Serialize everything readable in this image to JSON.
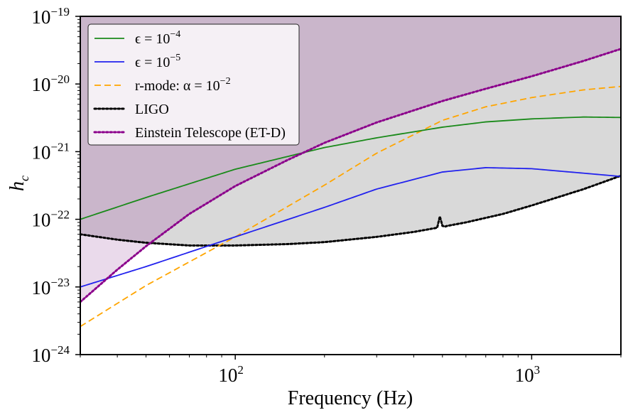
{
  "chart_data": {
    "type": "line",
    "xscale": "log",
    "yscale": "log",
    "xlim": [
      30,
      2000
    ],
    "ylim": [
      1e-24,
      1e-19
    ],
    "xlabel": "Frequency (Hz)",
    "ylabel": "h",
    "ylabel_sub": "c",
    "x_ticks": [
      {
        "base": "10",
        "exp": "2",
        "value": 100
      },
      {
        "base": "10",
        "exp": "3",
        "value": 1000
      }
    ],
    "y_ticks": [
      {
        "base": "10",
        "exp": "−24",
        "value": 1e-24
      },
      {
        "base": "10",
        "exp": "−23",
        "value": 1e-23
      },
      {
        "base": "10",
        "exp": "−22",
        "value": 1e-22
      },
      {
        "base": "10",
        "exp": "−21",
        "value": 1e-21
      },
      {
        "base": "10",
        "exp": "−20",
        "value": 1e-20
      },
      {
        "base": "10",
        "exp": "−19",
        "value": 1e-19
      }
    ],
    "legend_position": "top-left",
    "series": [
      {
        "key": "eps4",
        "name": "ϵ = 10",
        "name_exp": "−4",
        "color": "#1a8a1a",
        "style": "solid",
        "x": [
          30,
          50,
          100,
          200,
          300,
          500,
          700,
          1000,
          1500,
          2000
        ],
        "y": [
          1e-22,
          2.1e-22,
          5.5e-22,
          1.15e-21,
          1.6e-21,
          2.3e-21,
          2.75e-21,
          3.05e-21,
          3.25e-21,
          3.2e-21
        ]
      },
      {
        "key": "eps5",
        "name": "ϵ = 10",
        "name_exp": "−5",
        "color": "#2222ee",
        "style": "solid",
        "x": [
          30,
          50,
          100,
          200,
          300,
          500,
          700,
          1000,
          1500,
          2000
        ],
        "y": [
          1e-23,
          2e-23,
          5.5e-23,
          1.5e-22,
          2.8e-22,
          5e-22,
          5.8e-22,
          5.6e-22,
          4.8e-22,
          4.3e-22
        ]
      },
      {
        "key": "rmode",
        "name": "r-mode: α = 10",
        "name_exp": "−2",
        "color": "#ffa500",
        "style": "dashed",
        "x": [
          30,
          50,
          100,
          200,
          300,
          500,
          700,
          1000,
          1500,
          2000
        ],
        "y": [
          2.6e-24,
          1.05e-23,
          5.5e-23,
          3.2e-22,
          9.5e-22,
          2.9e-21,
          4.6e-21,
          6.3e-21,
          8.2e-21,
          9.2e-21
        ]
      },
      {
        "key": "ligo",
        "name": "LIGO",
        "name_exp": "",
        "color": "#000000",
        "style": "dotted",
        "x": [
          30,
          40,
          50,
          70,
          100,
          150,
          200,
          300,
          400,
          480,
          490,
          500,
          510,
          520,
          600,
          800,
          1000,
          1500,
          2000
        ],
        "y": [
          6e-23,
          5e-23,
          4.5e-23,
          4.1e-23,
          4.1e-23,
          4.3e-23,
          4.6e-23,
          5.5e-23,
          6.5e-23,
          7.5e-23,
          1.1e-22,
          8e-23,
          7.8e-23,
          8e-23,
          9e-23,
          1.2e-22,
          1.6e-22,
          2.8e-22,
          4.4e-22
        ]
      },
      {
        "key": "et",
        "name": "Einstein Telescope (ET-D)",
        "name_exp": "",
        "color": "#8b008b",
        "style": "dotted",
        "x": [
          30,
          40,
          50,
          70,
          100,
          150,
          200,
          300,
          500,
          700,
          1000,
          1500,
          2000
        ],
        "y": [
          6e-24,
          1.8e-23,
          4e-23,
          1.2e-22,
          3.1e-22,
          7.5e-22,
          1.35e-21,
          2.7e-21,
          5.6e-21,
          8.5e-21,
          1.3e-20,
          2.2e-20,
          3.3e-20
        ]
      }
    ],
    "shaded_regions": [
      {
        "name": "above-et-region",
        "color": "#cab6cb",
        "between": [
          "et",
          "top"
        ]
      },
      {
        "name": "between-ligo-et-region",
        "color": "#eadaeb",
        "between": [
          "ligo",
          "et"
        ]
      },
      {
        "name": "above-ligo-region",
        "color": "#d9d9d9",
        "between": [
          "ligo",
          "et"
        ]
      }
    ]
  }
}
